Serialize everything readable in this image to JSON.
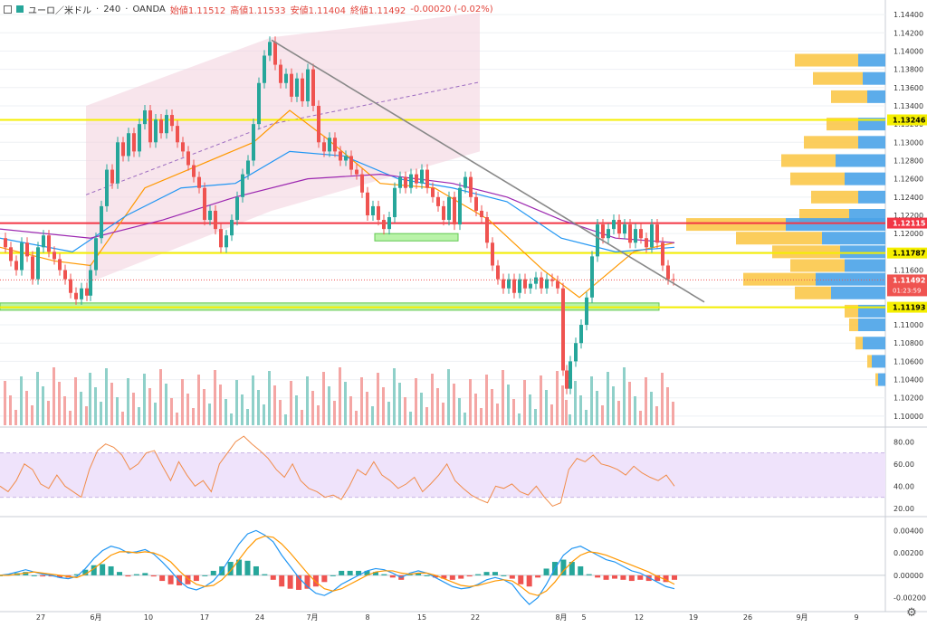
{
  "header": {
    "symbol": "ユーロ／米ドル",
    "interval": "240",
    "broker": "OANDA",
    "open_label": "始値1.11512",
    "high_label": "高値1.11533",
    "low_label": "安値1.11404",
    "close_label": "終値1.11492",
    "change_label": "-0.00020 (-0.02%)",
    "icons": [
      "chart-window-icon",
      "symbol-color-icon"
    ]
  },
  "chart_data": [
    {
      "type": "candlestick",
      "panel": "price",
      "ylim": [
        1.099,
        1.145
      ],
      "price_ticks": [
        "1.14400",
        "1.14200",
        "1.14000",
        "1.13800",
        "1.13600",
        "1.13400",
        "1.13200",
        "1.13000",
        "1.12800",
        "1.12600",
        "1.12400",
        "1.12200",
        "1.12000",
        "1.11800",
        "1.11600",
        "1.11400",
        "1.11200",
        "1.11000",
        "1.10800",
        "1.10600",
        "1.10400",
        "1.10200",
        "1.10000"
      ],
      "x_ticks": [
        "27",
        "6月",
        "10",
        "17",
        "24",
        "7月",
        "8",
        "15",
        "22",
        "8月",
        "5",
        "12",
        "19",
        "26",
        "9月",
        "9"
      ],
      "horizontal_lines": [
        {
          "price": 1.13246,
          "label": "1.13246",
          "color": "#f5ef00",
          "text_color": "#000000"
        },
        {
          "price": 1.12115,
          "label": "1.12115",
          "color": "#f23645",
          "text_color": "#ffffff"
        },
        {
          "price": 1.11787,
          "label": "1.11787",
          "color": "#f5ef00",
          "text_color": "#000000"
        },
        {
          "price": 1.11193,
          "label": "1.11193",
          "color": "#f5ef00",
          "text_color": "#000000"
        }
      ],
      "last_price": {
        "value": 1.11492,
        "label": "1.11492",
        "countdown": "01:23:59",
        "color": "#ef5350"
      },
      "close_path": [
        [
          0,
          1.1195
        ],
        [
          6,
          1.1185
        ],
        [
          12,
          1.117
        ],
        [
          18,
          1.116
        ],
        [
          24,
          1.119
        ],
        [
          30,
          1.1175
        ],
        [
          36,
          1.115
        ],
        [
          42,
          1.1185
        ],
        [
          48,
          1.1198
        ],
        [
          54,
          1.118
        ],
        [
          60,
          1.1172
        ],
        [
          66,
          1.116
        ],
        [
          72,
          1.115
        ],
        [
          78,
          1.1135
        ],
        [
          84,
          1.1128
        ],
        [
          90,
          1.114
        ],
        [
          96,
          1.1132
        ],
        [
          100,
          1.116
        ],
        [
          106,
          1.1195
        ],
        [
          112,
          1.123
        ],
        [
          118,
          1.127
        ],
        [
          124,
          1.1255
        ],
        [
          130,
          1.13
        ],
        [
          136,
          1.1285
        ],
        [
          142,
          1.131
        ],
        [
          148,
          1.129
        ],
        [
          154,
          1.132
        ],
        [
          160,
          1.1335
        ],
        [
          166,
          1.13
        ],
        [
          172,
          1.1325
        ],
        [
          178,
          1.131
        ],
        [
          184,
          1.133
        ],
        [
          190,
          1.1318
        ],
        [
          196,
          1.13
        ],
        [
          202,
          1.129
        ],
        [
          208,
          1.1275
        ],
        [
          214,
          1.1262
        ],
        [
          220,
          1.125
        ],
        [
          226,
          1.1215
        ],
        [
          232,
          1.1225
        ],
        [
          238,
          1.1205
        ],
        [
          244,
          1.1185
        ],
        [
          250,
          1.1198
        ],
        [
          256,
          1.1215
        ],
        [
          262,
          1.124
        ],
        [
          268,
          1.1265
        ],
        [
          274,
          1.128
        ],
        [
          280,
          1.132
        ],
        [
          286,
          1.1365
        ],
        [
          292,
          1.1395
        ],
        [
          298,
          1.141
        ],
        [
          304,
          1.1385
        ],
        [
          310,
          1.1365
        ],
        [
          316,
          1.1375
        ],
        [
          322,
          1.135
        ],
        [
          328,
          1.137
        ],
        [
          334,
          1.1345
        ],
        [
          340,
          1.138
        ],
        [
          346,
          1.134
        ],
        [
          352,
          1.13
        ],
        [
          358,
          1.129
        ],
        [
          364,
          1.1305
        ],
        [
          370,
          1.129
        ],
        [
          376,
          1.128
        ],
        [
          382,
          1.1285
        ],
        [
          388,
          1.127
        ],
        [
          394,
          1.1265
        ],
        [
          400,
          1.1245
        ],
        [
          406,
          1.122
        ],
        [
          412,
          1.123
        ],
        [
          418,
          1.1215
        ],
        [
          424,
          1.1205
        ],
        [
          430,
          1.1218
        ],
        [
          436,
          1.125
        ],
        [
          442,
          1.1262
        ],
        [
          448,
          1.125
        ],
        [
          454,
          1.1265
        ],
        [
          460,
          1.1255
        ],
        [
          466,
          1.127
        ],
        [
          472,
          1.125
        ],
        [
          478,
          1.124
        ],
        [
          484,
          1.123
        ],
        [
          490,
          1.1215
        ],
        [
          496,
          1.124
        ],
        [
          502,
          1.121
        ],
        [
          508,
          1.125
        ],
        [
          514,
          1.1262
        ],
        [
          520,
          1.124
        ],
        [
          526,
          1.1225
        ],
        [
          532,
          1.1218
        ],
        [
          538,
          1.119
        ],
        [
          544,
          1.1165
        ],
        [
          550,
          1.115
        ],
        [
          556,
          1.114
        ],
        [
          562,
          1.115
        ],
        [
          568,
          1.1135
        ],
        [
          574,
          1.115
        ],
        [
          580,
          1.114
        ],
        [
          586,
          1.1145
        ],
        [
          592,
          1.1152
        ],
        [
          598,
          1.114
        ],
        [
          604,
          1.115
        ],
        [
          610,
          1.1148
        ],
        [
          616,
          1.114
        ],
        [
          622,
          1.105
        ],
        [
          626,
          1.103
        ],
        [
          630,
          1.106
        ],
        [
          636,
          1.108
        ],
        [
          642,
          1.11
        ],
        [
          648,
          1.113
        ],
        [
          654,
          1.1175
        ],
        [
          660,
          1.121
        ],
        [
          666,
          1.1195
        ],
        [
          672,
          1.1205
        ],
        [
          678,
          1.1215
        ],
        [
          684,
          1.12
        ],
        [
          690,
          1.121
        ],
        [
          696,
          1.119
        ],
        [
          702,
          1.1205
        ],
        [
          708,
          1.1195
        ],
        [
          714,
          1.1185
        ],
        [
          720,
          1.121
        ],
        [
          726,
          1.119
        ],
        [
          732,
          1.1165
        ],
        [
          738,
          1.115
        ],
        [
          744,
          1.1149
        ]
      ],
      "indicator_lines": [
        {
          "name": "sma-fast",
          "color": "#ff9800",
          "points": [
            [
              0,
              1.1185
            ],
            [
              60,
              1.117
            ],
            [
              100,
              1.1165
            ],
            [
              160,
              1.125
            ],
            [
              220,
              1.1275
            ],
            [
              280,
              1.13
            ],
            [
              320,
              1.1335
            ],
            [
              360,
              1.1305
            ],
            [
              420,
              1.1255
            ],
            [
              480,
              1.125
            ],
            [
              540,
              1.1215
            ],
            [
              600,
              1.116
            ],
            [
              640,
              1.113
            ],
            [
              700,
              1.118
            ],
            [
              745,
              1.119
            ]
          ]
        },
        {
          "name": "sma-mid",
          "color": "#2196f3",
          "points": [
            [
              0,
              1.1195
            ],
            [
              80,
              1.118
            ],
            [
              140,
              1.122
            ],
            [
              200,
              1.125
            ],
            [
              260,
              1.1255
            ],
            [
              320,
              1.129
            ],
            [
              380,
              1.1285
            ],
            [
              440,
              1.126
            ],
            [
              500,
              1.125
            ],
            [
              560,
              1.1235
            ],
            [
              620,
              1.1195
            ],
            [
              680,
              1.118
            ],
            [
              745,
              1.1185
            ]
          ]
        },
        {
          "name": "sma-slow",
          "color": "#9c27b0",
          "points": [
            [
              0,
              1.1205
            ],
            [
              100,
              1.1195
            ],
            [
              180,
              1.1215
            ],
            [
              260,
              1.124
            ],
            [
              340,
              1.126
            ],
            [
              420,
              1.1265
            ],
            [
              500,
              1.1255
            ],
            [
              560,
              1.124
            ],
            [
              620,
              1.1215
            ],
            [
              680,
              1.1195
            ],
            [
              745,
              1.119
            ]
          ]
        }
      ],
      "channel": {
        "color": "#f3d0dc",
        "upper": [
          [
            95,
            1.134
          ],
          [
            300,
            1.1415
          ],
          [
            530,
            1.1442
          ]
        ],
        "lower": [
          [
            95,
            1.1145
          ],
          [
            300,
            1.1225
          ],
          [
            530,
            1.129
          ]
        ]
      },
      "trendline": {
        "color": "#888888",
        "from": [
          300,
          1.1412
        ],
        "to": [
          778,
          1.1125
        ]
      },
      "support_boxes": [
        {
          "x0": 0,
          "x1": 728,
          "y_top": 1.1124,
          "y_bottom": 1.1116
        },
        {
          "x0": 414,
          "x1": 506,
          "y_top": 1.12,
          "y_bottom": 1.1192
        }
      ],
      "volume_profile": {
        "rows": [
          {
            "price": 1.139,
            "sell": 70,
            "buy": 30
          },
          {
            "price": 1.137,
            "sell": 55,
            "buy": 25
          },
          {
            "price": 1.135,
            "sell": 40,
            "buy": 20
          },
          {
            "price": 1.132,
            "sell": 35,
            "buy": 30
          },
          {
            "price": 1.13,
            "sell": 60,
            "buy": 30
          },
          {
            "price": 1.128,
            "sell": 60,
            "buy": 55
          },
          {
            "price": 1.126,
            "sell": 60,
            "buy": 45
          },
          {
            "price": 1.124,
            "sell": 52,
            "buy": 30
          },
          {
            "price": 1.122,
            "sell": 55,
            "buy": 40
          },
          {
            "price": 1.121,
            "sell": 110,
            "buy": 110
          },
          {
            "price": 1.1195,
            "sell": 95,
            "buy": 70
          },
          {
            "price": 1.118,
            "sell": 75,
            "buy": 50
          },
          {
            "price": 1.1165,
            "sell": 60,
            "buy": 45
          },
          {
            "price": 1.115,
            "sell": 80,
            "buy": 77
          },
          {
            "price": 1.1135,
            "sell": 40,
            "buy": 60
          },
          {
            "price": 1.1115,
            "sell": 15,
            "buy": 30
          },
          {
            "price": 1.11,
            "sell": 10,
            "buy": 30
          },
          {
            "price": 1.108,
            "sell": 8,
            "buy": 25
          },
          {
            "price": 1.106,
            "sell": 5,
            "buy": 15
          },
          {
            "price": 1.104,
            "sell": 3,
            "buy": 8
          }
        ]
      }
    },
    {
      "type": "line",
      "panel": "rsi",
      "ylim": [
        15,
        90
      ],
      "ticks": [
        "80.00",
        "60.00",
        "40.00",
        "20.00"
      ],
      "band": [
        30,
        70
      ],
      "values": [
        40,
        35,
        45,
        60,
        55,
        42,
        38,
        50,
        40,
        35,
        30,
        55,
        72,
        78,
        75,
        68,
        55,
        60,
        70,
        72,
        58,
        45,
        62,
        50,
        40,
        45,
        35,
        60,
        70,
        80,
        85,
        78,
        72,
        65,
        55,
        48,
        60,
        45,
        38,
        35,
        30,
        32,
        28,
        40,
        55,
        50,
        62,
        50,
        45,
        38,
        42,
        48,
        35,
        42,
        50,
        60,
        45,
        38,
        32,
        28,
        25,
        40,
        38,
        42,
        35,
        32,
        40,
        30,
        22,
        25,
        55,
        65,
        62,
        68,
        60,
        58,
        55,
        50,
        58,
        52,
        48,
        45,
        50,
        40
      ]
    },
    {
      "type": "histogram",
      "panel": "macd",
      "ylim": [
        -0.003,
        0.005
      ],
      "ticks": [
        "0.00400",
        "0.00200",
        "0.00000",
        "-0.00200"
      ],
      "macd": [
        0.0,
        0.0001,
        0.0003,
        0.0005,
        0.0003,
        0.0001,
        0.0,
        -0.0002,
        -0.0003,
        -0.0001,
        0.0006,
        0.0015,
        0.0022,
        0.0026,
        0.0024,
        0.002,
        0.0021,
        0.0023,
        0.0019,
        0.0012,
        0.0004,
        -0.0005,
        -0.0011,
        -0.0013,
        -0.001,
        -0.0005,
        0.0004,
        0.0016,
        0.0028,
        0.0037,
        0.004,
        0.0036,
        0.003,
        0.0018,
        0.0008,
        -0.0002,
        -0.001,
        -0.0016,
        -0.0018,
        -0.0014,
        -0.0008,
        -0.0004,
        0.0,
        0.0004,
        0.0006,
        0.0005,
        0.0002,
        -0.0002,
        0.0002,
        0.0004,
        0.0002,
        -0.0002,
        -0.0006,
        -0.001,
        -0.0012,
        -0.0011,
        -0.0008,
        -0.0004,
        -0.0002,
        -0.0004,
        -0.0008,
        -0.0018,
        -0.0026,
        -0.002,
        -0.0008,
        0.0006,
        0.0018,
        0.0024,
        0.0026,
        0.0022,
        0.0018,
        0.0014,
        0.0012,
        0.0008,
        0.0004,
        0.0002,
        -0.0002,
        -0.0006,
        -0.001,
        -0.0012
      ],
      "signal": [
        0.0,
        0.0,
        0.0001,
        0.0002,
        0.0003,
        0.0002,
        0.0001,
        0.0,
        -0.0001,
        -0.0002,
        0.0001,
        0.0006,
        0.0012,
        0.0018,
        0.0021,
        0.0021,
        0.002,
        0.0021,
        0.002,
        0.0017,
        0.0012,
        0.0004,
        -0.0003,
        -0.0008,
        -0.001,
        -0.0009,
        -0.0004,
        0.0004,
        0.0014,
        0.0024,
        0.0032,
        0.0035,
        0.0034,
        0.0028,
        0.002,
        0.0011,
        0.0002,
        -0.0006,
        -0.0012,
        -0.0014,
        -0.0012,
        -0.0008,
        -0.0004,
        0.0,
        0.0003,
        0.0004,
        0.0004,
        0.0002,
        0.0001,
        0.0002,
        0.0002,
        0.0,
        -0.0003,
        -0.0006,
        -0.0009,
        -0.001,
        -0.0009,
        -0.0007,
        -0.0005,
        -0.0004,
        -0.0005,
        -0.001,
        -0.0016,
        -0.0018,
        -0.0014,
        -0.0006,
        0.0004,
        0.0012,
        0.0018,
        0.0021,
        0.002,
        0.0018,
        0.0015,
        0.0012,
        0.0009,
        0.0006,
        0.0003,
        -0.0001,
        -0.0004,
        -0.0008
      ]
    }
  ],
  "colors": {
    "up": "#26a69a",
    "down": "#ef5350",
    "up_volume": "#8fd0c9",
    "down_volume": "#f4a6a4",
    "rsi_line": "#f08c4a",
    "rsi_band": "#efe3fb",
    "macd_line": "#2196f3",
    "signal_line": "#ff9800",
    "profile_buy": "#4aa3e8",
    "profile_sell": "#fbc84a",
    "grid": "#eef0f4"
  },
  "settings_icon": "gear-icon"
}
